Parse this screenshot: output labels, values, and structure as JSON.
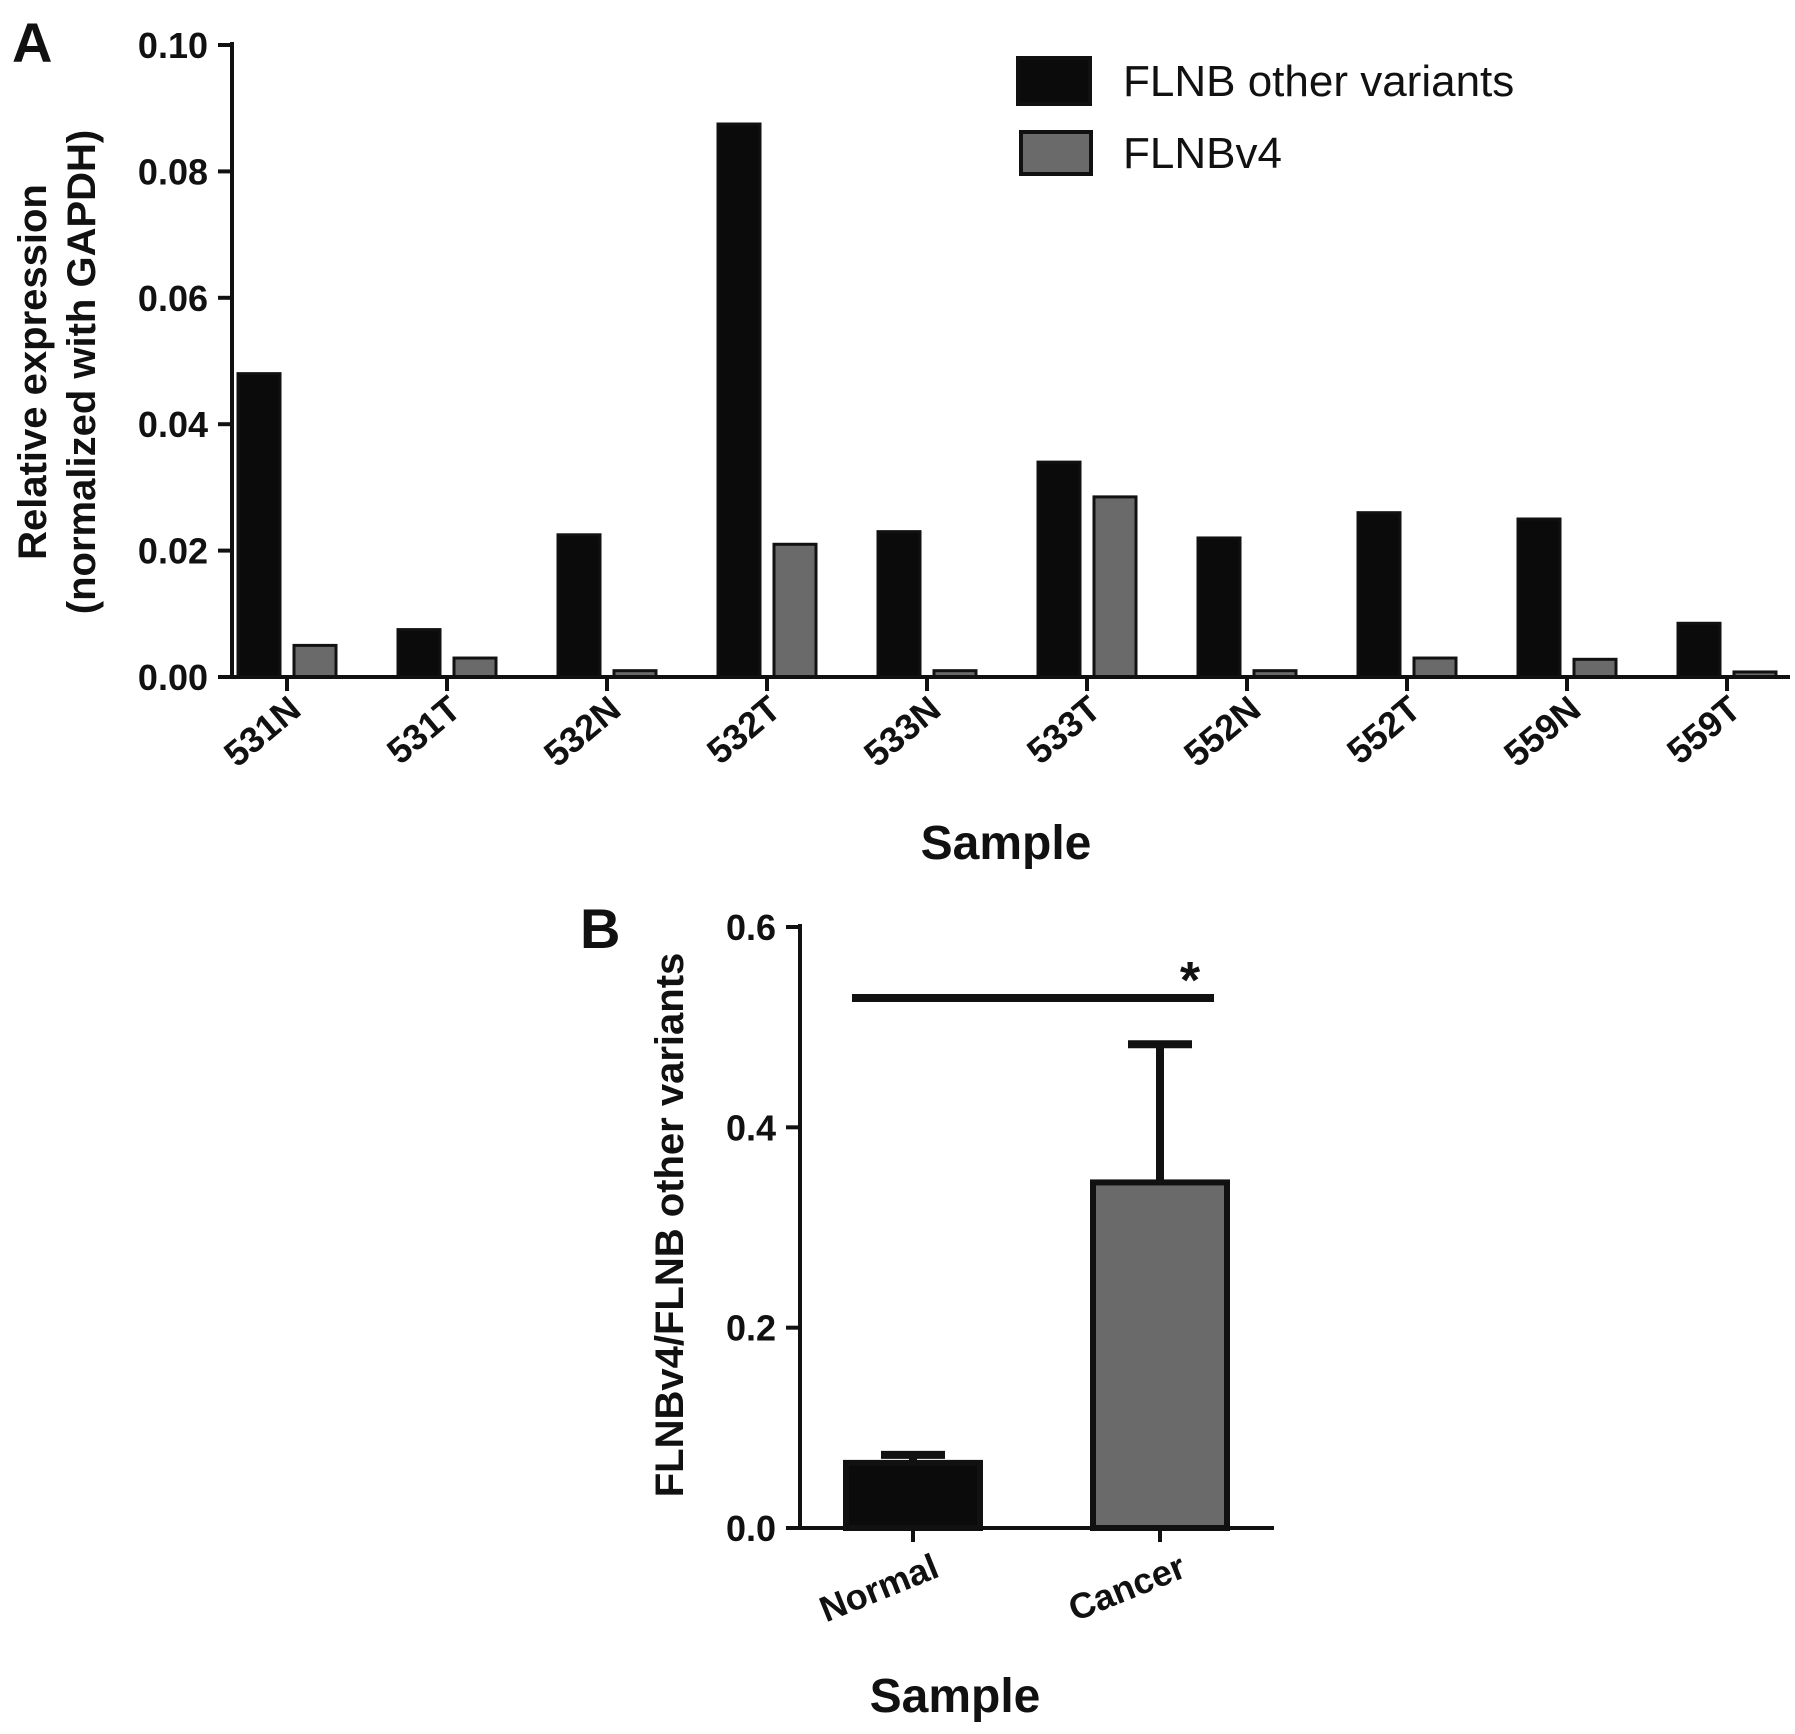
{
  "colors": {
    "dark": "#0b0b0b",
    "gray": "#6a6a6a",
    "outline": "#111111"
  },
  "chart_data": [
    {
      "panel": "A",
      "type": "bar",
      "ylabel_line1": "Relative expression",
      "ylabel_line2": "(normalized with GAPDH)",
      "xlabel": "Sample",
      "ylim": [
        0,
        0.1
      ],
      "yticks": [
        "0.00",
        "0.02",
        "0.04",
        "0.06",
        "0.08",
        "0.10"
      ],
      "categories": [
        "531N",
        "531T",
        "532N",
        "532T",
        "533N",
        "533T",
        "552N",
        "552T",
        "559N",
        "559T"
      ],
      "series": [
        {
          "name": "FLNB other variants",
          "values": [
            0.048,
            0.0075,
            0.0225,
            0.0875,
            0.023,
            0.034,
            0.022,
            0.026,
            0.025,
            0.0085
          ]
        },
        {
          "name": "FLNBv4",
          "values": [
            0.005,
            0.003,
            0.001,
            0.021,
            0.001,
            0.0285,
            0.001,
            0.003,
            0.0028,
            0.0008
          ]
        }
      ],
      "legend": "top-right"
    },
    {
      "panel": "B",
      "type": "bar",
      "ylabel": "FLNBv4/FLNB other variants",
      "xlabel": "Sample",
      "ylim": [
        0,
        0.6
      ],
      "yticks": [
        "0.0",
        "0.2",
        "0.4",
        "0.6"
      ],
      "categories": [
        "Normal",
        "Cancer"
      ],
      "values": [
        0.065,
        0.345
      ],
      "error": [
        0.008,
        0.138
      ],
      "significance": "*"
    }
  ]
}
